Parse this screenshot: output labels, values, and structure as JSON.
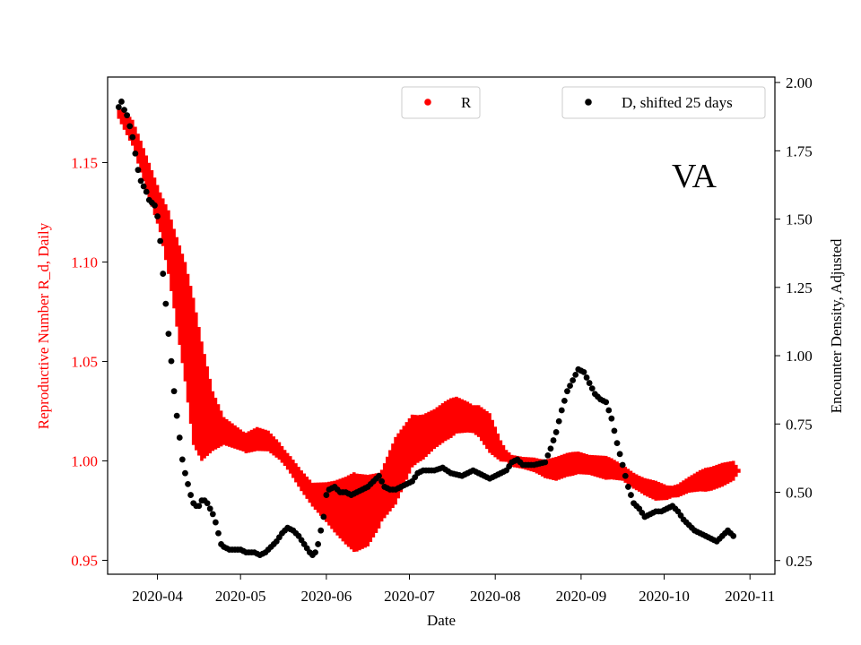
{
  "chart_data": {
    "type": "scatter",
    "annotation": "VA",
    "xlabel": "Date",
    "ylabel_left": "Reproductive Number R_d, Daily",
    "ylabel_right": "Encounter Density, Adjusted",
    "x_tick_labels": [
      "2020-04",
      "2020-05",
      "2020-06",
      "2020-07",
      "2020-08",
      "2020-09",
      "2020-10",
      "2020-11"
    ],
    "x_tick_days": [
      14,
      44,
      75,
      105,
      136,
      167,
      197,
      228
    ],
    "x_range_days": [
      -4,
      237
    ],
    "left_axis": {
      "color": "#ff0000",
      "range": [
        0.943,
        1.193
      ],
      "ticks": [
        0.95,
        1.0,
        1.05,
        1.1,
        1.15
      ],
      "tick_labels": [
        "0.95",
        "1.00",
        "1.05",
        "1.10",
        "1.15"
      ]
    },
    "right_axis": {
      "color": "#000000",
      "range": [
        0.2,
        2.02
      ],
      "ticks": [
        0.25,
        0.5,
        0.75,
        1.0,
        1.25,
        1.5,
        1.75,
        2.0
      ],
      "tick_labels": [
        "0.25",
        "0.50",
        "0.75",
        "1.00",
        "1.25",
        "1.50",
        "1.75",
        "2.00"
      ]
    },
    "legend": [
      {
        "label": "R",
        "color": "#ff0000",
        "position": "top-center"
      },
      {
        "label": "D, shifted 25 days",
        "color": "#000000",
        "position": "top-right"
      }
    ],
    "series": [
      {
        "name": "R",
        "axis": "left",
        "color": "#ff0000",
        "style": "error-band",
        "day_start": 0,
        "day_end": 224,
        "center_keypoints": [
          [
            0,
            1.175
          ],
          [
            5,
            1.165
          ],
          [
            10,
            1.145
          ],
          [
            15,
            1.125
          ],
          [
            18,
            1.11
          ],
          [
            21,
            1.09
          ],
          [
            24,
            1.07
          ],
          [
            27,
            1.045
          ],
          [
            30,
            1.03
          ],
          [
            34,
            1.02
          ],
          [
            38,
            1.015
          ],
          [
            42,
            1.012
          ],
          [
            46,
            1.009
          ],
          [
            50,
            1.011
          ],
          [
            54,
            1.01
          ],
          [
            58,
            1.005
          ],
          [
            62,
            0.998
          ],
          [
            66,
            0.99
          ],
          [
            70,
            0.983
          ],
          [
            74,
            0.98
          ],
          [
            78,
            0.977
          ],
          [
            82,
            0.975
          ],
          [
            86,
            0.974
          ],
          [
            90,
            0.975
          ],
          [
            94,
            0.98
          ],
          [
            98,
            0.99
          ],
          [
            102,
            1.0
          ],
          [
            106,
            1.01
          ],
          [
            110,
            1.012
          ],
          [
            114,
            1.016
          ],
          [
            118,
            1.02
          ],
          [
            122,
            1.023
          ],
          [
            126,
            1.022
          ],
          [
            130,
            1.02
          ],
          [
            134,
            1.014
          ],
          [
            138,
            1.005
          ],
          [
            142,
            1.0
          ],
          [
            146,
            0.999
          ],
          [
            150,
            0.998
          ],
          [
            154,
            0.996
          ],
          [
            158,
            0.996
          ],
          [
            162,
            0.998
          ],
          [
            166,
            0.999
          ],
          [
            170,
            0.998
          ],
          [
            174,
            0.997
          ],
          [
            178,
            0.996
          ],
          [
            182,
            0.994
          ],
          [
            186,
            0.99
          ],
          [
            190,
            0.987
          ],
          [
            194,
            0.985
          ],
          [
            198,
            0.984
          ],
          [
            202,
            0.985
          ],
          [
            206,
            0.988
          ],
          [
            210,
            0.99
          ],
          [
            214,
            0.991
          ],
          [
            218,
            0.993
          ],
          [
            222,
            0.995
          ],
          [
            224,
            0.995
          ]
        ],
        "halfwidth_keypoints": [
          [
            0,
            0.003
          ],
          [
            4,
            0.006
          ],
          [
            8,
            0.008
          ],
          [
            15,
            0.01
          ],
          [
            20,
            0.02
          ],
          [
            24,
            0.03
          ],
          [
            27,
            0.037
          ],
          [
            30,
            0.03
          ],
          [
            34,
            0.015
          ],
          [
            38,
            0.007
          ],
          [
            45,
            0.005
          ],
          [
            50,
            0.006
          ],
          [
            60,
            0.004
          ],
          [
            70,
            0.006
          ],
          [
            75,
            0.01
          ],
          [
            80,
            0.015
          ],
          [
            85,
            0.02
          ],
          [
            90,
            0.018
          ],
          [
            95,
            0.013
          ],
          [
            100,
            0.017
          ],
          [
            108,
            0.012
          ],
          [
            114,
            0.01
          ],
          [
            120,
            0.01
          ],
          [
            128,
            0.007
          ],
          [
            134,
            0.01
          ],
          [
            140,
            0.003
          ],
          [
            146,
            0.003
          ],
          [
            152,
            0.004
          ],
          [
            158,
            0.006
          ],
          [
            164,
            0.006
          ],
          [
            170,
            0.005
          ],
          [
            176,
            0.006
          ],
          [
            182,
            0.004
          ],
          [
            188,
            0.004
          ],
          [
            194,
            0.005
          ],
          [
            200,
            0.003
          ],
          [
            206,
            0.004
          ],
          [
            212,
            0.006
          ],
          [
            218,
            0.006
          ],
          [
            222,
            0.005
          ],
          [
            224,
            0.001
          ]
        ]
      },
      {
        "name": "D, shifted 25 days",
        "axis": "right",
        "color": "#000000",
        "style": "dots",
        "day_start": 0,
        "day_end": 222,
        "day_step": 1,
        "keypoints": [
          [
            0,
            1.91
          ],
          [
            1,
            1.93
          ],
          [
            2,
            1.9
          ],
          [
            3,
            1.88
          ],
          [
            4,
            1.84
          ],
          [
            5,
            1.8
          ],
          [
            6,
            1.74
          ],
          [
            7,
            1.68
          ],
          [
            8,
            1.64
          ],
          [
            9,
            1.62
          ],
          [
            10,
            1.6
          ],
          [
            11,
            1.57
          ],
          [
            12,
            1.56
          ],
          [
            13,
            1.55
          ],
          [
            14,
            1.51
          ],
          [
            15,
            1.42
          ],
          [
            16,
            1.3
          ],
          [
            17,
            1.19
          ],
          [
            18,
            1.08
          ],
          [
            19,
            0.98
          ],
          [
            20,
            0.87
          ],
          [
            21,
            0.78
          ],
          [
            22,
            0.7
          ],
          [
            23,
            0.62
          ],
          [
            24,
            0.57
          ],
          [
            25,
            0.53
          ],
          [
            26,
            0.49
          ],
          [
            27,
            0.46
          ],
          [
            28,
            0.45
          ],
          [
            29,
            0.45
          ],
          [
            30,
            0.47
          ],
          [
            31,
            0.47
          ],
          [
            32,
            0.46
          ],
          [
            33,
            0.44
          ],
          [
            34,
            0.42
          ],
          [
            35,
            0.39
          ],
          [
            36,
            0.35
          ],
          [
            37,
            0.31
          ],
          [
            38,
            0.3
          ],
          [
            40,
            0.29
          ],
          [
            44,
            0.29
          ],
          [
            46,
            0.28
          ],
          [
            49,
            0.28
          ],
          [
            51,
            0.27
          ],
          [
            53,
            0.28
          ],
          [
            55,
            0.3
          ],
          [
            57,
            0.32
          ],
          [
            59,
            0.35
          ],
          [
            61,
            0.37
          ],
          [
            63,
            0.36
          ],
          [
            65,
            0.34
          ],
          [
            67,
            0.31
          ],
          [
            69,
            0.28
          ],
          [
            70,
            0.27
          ],
          [
            71,
            0.28
          ],
          [
            72,
            0.31
          ],
          [
            73,
            0.36
          ],
          [
            74,
            0.41
          ],
          [
            75,
            0.49
          ],
          [
            76,
            0.51
          ],
          [
            78,
            0.52
          ],
          [
            80,
            0.5
          ],
          [
            82,
            0.5
          ],
          [
            84,
            0.49
          ],
          [
            86,
            0.5
          ],
          [
            88,
            0.51
          ],
          [
            90,
            0.52
          ],
          [
            92,
            0.54
          ],
          [
            94,
            0.56
          ],
          [
            96,
            0.52
          ],
          [
            98,
            0.51
          ],
          [
            100,
            0.51
          ],
          [
            102,
            0.52
          ],
          [
            104,
            0.53
          ],
          [
            106,
            0.54
          ],
          [
            108,
            0.57
          ],
          [
            110,
            0.58
          ],
          [
            114,
            0.58
          ],
          [
            117,
            0.59
          ],
          [
            120,
            0.57
          ],
          [
            124,
            0.56
          ],
          [
            128,
            0.58
          ],
          [
            132,
            0.56
          ],
          [
            134,
            0.55
          ],
          [
            136,
            0.56
          ],
          [
            140,
            0.58
          ],
          [
            142,
            0.61
          ],
          [
            144,
            0.62
          ],
          [
            146,
            0.6
          ],
          [
            150,
            0.6
          ],
          [
            154,
            0.61
          ],
          [
            156,
            0.66
          ],
          [
            158,
            0.72
          ],
          [
            160,
            0.8
          ],
          [
            162,
            0.87
          ],
          [
            164,
            0.91
          ],
          [
            166,
            0.95
          ],
          [
            168,
            0.94
          ],
          [
            170,
            0.9
          ],
          [
            172,
            0.86
          ],
          [
            174,
            0.84
          ],
          [
            176,
            0.83
          ],
          [
            178,
            0.77
          ],
          [
            180,
            0.68
          ],
          [
            182,
            0.6
          ],
          [
            184,
            0.52
          ],
          [
            186,
            0.46
          ],
          [
            188,
            0.44
          ],
          [
            190,
            0.41
          ],
          [
            192,
            0.42
          ],
          [
            194,
            0.43
          ],
          [
            196,
            0.43
          ],
          [
            198,
            0.44
          ],
          [
            200,
            0.45
          ],
          [
            202,
            0.43
          ],
          [
            204,
            0.4
          ],
          [
            206,
            0.38
          ],
          [
            208,
            0.36
          ],
          [
            210,
            0.35
          ],
          [
            212,
            0.34
          ],
          [
            214,
            0.33
          ],
          [
            216,
            0.32
          ],
          [
            218,
            0.34
          ],
          [
            220,
            0.36
          ],
          [
            222,
            0.34
          ]
        ]
      }
    ]
  }
}
